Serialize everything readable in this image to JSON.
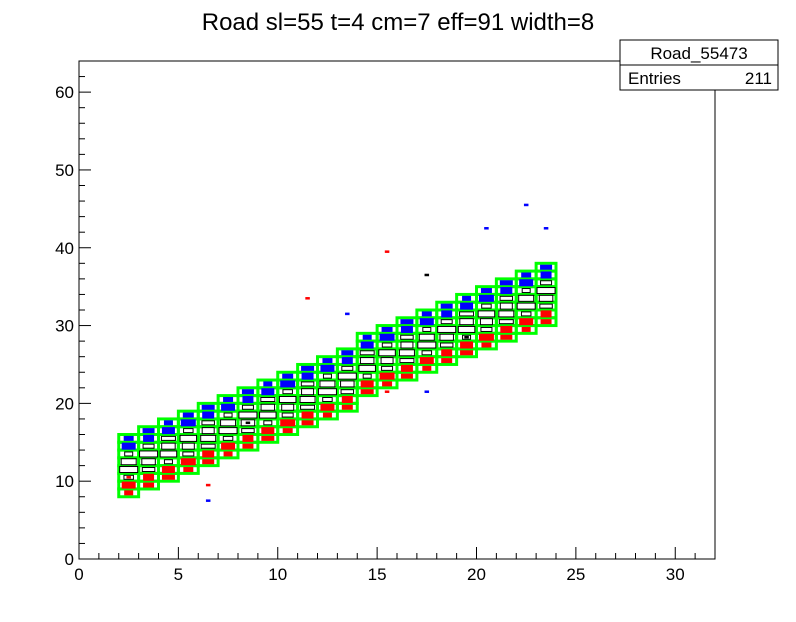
{
  "colors": {
    "background": "#ffffff",
    "axis": "#000000",
    "road_outline": "#00ff00",
    "hit_top": "#0000ff",
    "hit_bottom": "#ff0000",
    "hit_mid_edge": "#000000"
  },
  "chart_data": {
    "type": "heatmap",
    "title": "Road sl=55 t=4 cm=7 eff=91 width=8",
    "xlabel": "",
    "ylabel": "",
    "xlim": [
      0,
      32
    ],
    "ylim": [
      0,
      64
    ],
    "x_ticks": [
      "0",
      "5",
      "10",
      "15",
      "20",
      "25",
      "30"
    ],
    "y_ticks": [
      "0",
      "10",
      "20",
      "30",
      "40",
      "50",
      "60"
    ],
    "grid": false,
    "stats_box": {
      "name": "Road_55473",
      "entries_label": "Entries",
      "entries_value": "211"
    },
    "road": {
      "x_start": 2,
      "x_end": 24,
      "column_width": 1,
      "bottom_at_start": 8,
      "slope": 1.09,
      "width": 8
    },
    "stray_hits": [
      {
        "x": 2.5,
        "y": 10.5,
        "color": "red"
      },
      {
        "x": 6.5,
        "y": 9.5,
        "color": "red"
      },
      {
        "x": 6.5,
        "y": 7.5,
        "color": "blue"
      },
      {
        "x": 7.5,
        "y": 13.5,
        "color": "red"
      },
      {
        "x": 10.5,
        "y": 16.5,
        "color": "red"
      },
      {
        "x": 11.5,
        "y": 33.5,
        "color": "red"
      },
      {
        "x": 13.5,
        "y": 31.5,
        "color": "blue"
      },
      {
        "x": 15.5,
        "y": 39.5,
        "color": "red"
      },
      {
        "x": 15.5,
        "y": 21.5,
        "color": "red"
      },
      {
        "x": 17.5,
        "y": 21.5,
        "color": "blue"
      },
      {
        "x": 17.5,
        "y": 36.5,
        "color": "black"
      },
      {
        "x": 19.5,
        "y": 28.5,
        "color": "black"
      },
      {
        "x": 20.5,
        "y": 42.5,
        "color": "blue"
      },
      {
        "x": 22.5,
        "y": 45.5,
        "color": "blue"
      },
      {
        "x": 23.5,
        "y": 42.5,
        "color": "blue"
      },
      {
        "x": 8.5,
        "y": 17.5,
        "color": "black"
      }
    ]
  }
}
